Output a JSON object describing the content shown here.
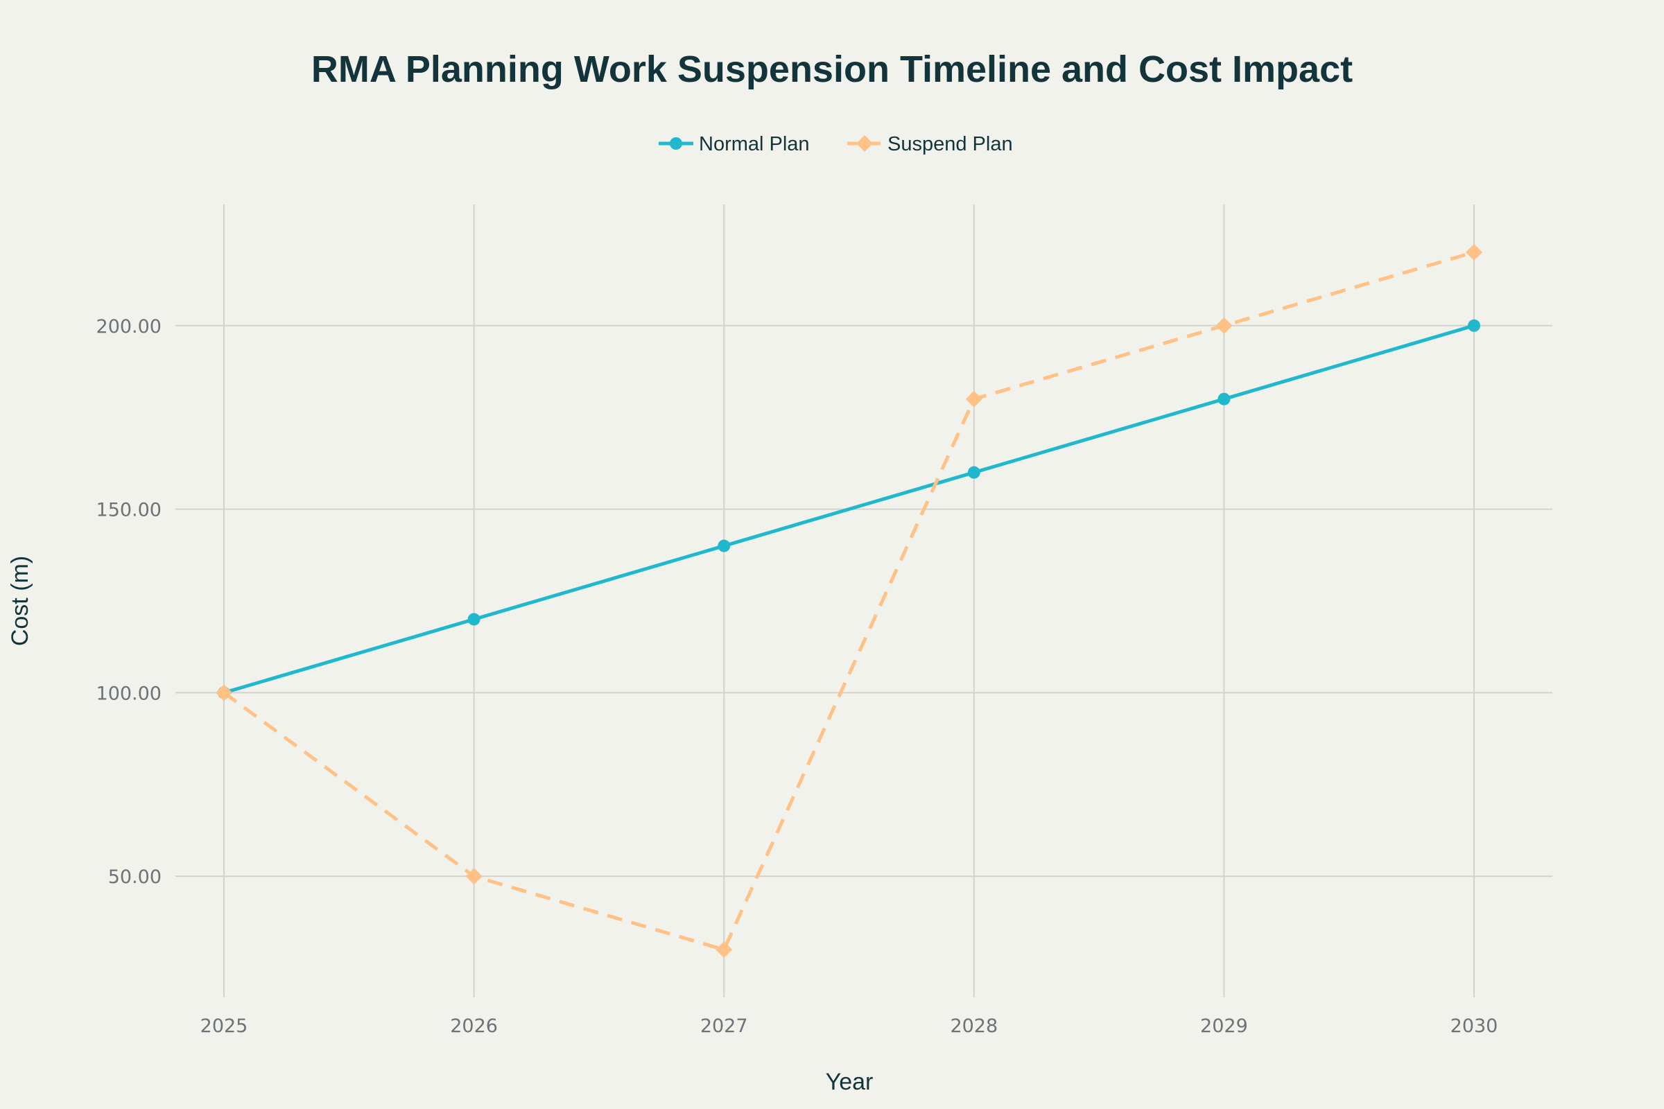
{
  "chart_data": {
    "type": "line",
    "title": "RMA Planning Work Suspension Timeline and Cost Impact",
    "xlabel": "Year",
    "ylabel": "Cost (m)",
    "x": [
      2025,
      2026,
      2027,
      2028,
      2029,
      2030
    ],
    "xticks": [
      "2025",
      "2026",
      "2027",
      "2028",
      "2029",
      "2030"
    ],
    "yticks": [
      "50.00",
      "100.00",
      "150.00",
      "200.00"
    ],
    "ytick_values": [
      50,
      100,
      150,
      200
    ],
    "ylim": [
      17,
      233
    ],
    "xlim": [
      2024.6,
      2030.3
    ],
    "grid": true,
    "legend_position": "top-center",
    "series": [
      {
        "name": "Normal Plan",
        "values": [
          100,
          120,
          140,
          160,
          180,
          200
        ],
        "color": "#1fb8cd",
        "dash": "solid",
        "marker": "circle"
      },
      {
        "name": "Suspend Plan",
        "values": [
          100,
          50,
          30,
          180,
          200,
          220
        ],
        "color": "#ffc185",
        "dash": "dash",
        "marker": "diamond"
      }
    ]
  }
}
